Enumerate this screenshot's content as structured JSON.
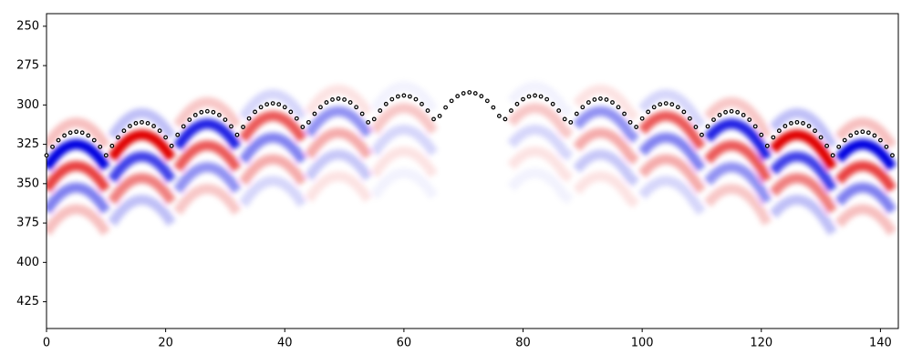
{
  "chart_data": {
    "type": "scatter",
    "x": [
      0,
      1,
      2,
      3,
      4,
      5,
      6,
      7,
      8,
      9,
      10,
      11,
      12,
      13,
      14,
      15,
      16,
      17,
      18,
      19,
      20,
      21,
      22,
      23,
      24,
      25,
      26,
      27,
      28,
      29,
      30,
      31,
      32,
      33,
      34,
      35,
      36,
      37,
      38,
      39,
      40,
      41,
      42,
      43,
      44,
      45,
      46,
      47,
      48,
      49,
      50,
      51,
      52,
      53,
      54,
      55,
      56,
      57,
      58,
      59,
      60,
      61,
      62,
      63,
      64,
      65,
      66,
      67,
      68,
      69,
      70,
      71,
      72,
      73,
      74,
      75,
      76,
      77,
      78,
      79,
      80,
      81,
      82,
      83,
      84,
      85,
      86,
      87,
      88,
      89,
      90,
      91,
      92,
      93,
      94,
      95,
      96,
      97,
      98,
      99,
      100,
      101,
      102,
      103,
      104,
      105,
      106,
      107,
      108,
      109,
      110,
      111,
      112,
      113,
      114,
      115,
      116,
      117,
      118,
      119,
      120,
      121,
      122,
      123,
      124,
      125,
      126,
      127,
      128,
      129,
      130,
      131,
      132,
      133,
      134,
      135,
      136,
      137,
      138,
      139,
      140,
      141,
      142
    ],
    "values": [
      332,
      326.6,
      322.4,
      319.4,
      317.6,
      317,
      317.6,
      319.4,
      322.4,
      326.6,
      332,
      326,
      320.6,
      316.4,
      313.4,
      311.6,
      311,
      311.6,
      313.4,
      316.4,
      320.6,
      326,
      319,
      313.6,
      309.4,
      306.4,
      304.6,
      304,
      304.6,
      306.4,
      309.4,
      313.6,
      319,
      314,
      308.6,
      304.4,
      301.4,
      299.6,
      299,
      299.6,
      301.4,
      304.4,
      308.6,
      314,
      311,
      305.6,
      301.4,
      298.4,
      296.6,
      296,
      296.6,
      298.4,
      301.4,
      305.6,
      311,
      309,
      303.6,
      299.4,
      296.4,
      294.6,
      294,
      294.6,
      296.4,
      299.4,
      303.6,
      309,
      307,
      301.6,
      297.4,
      294.4,
      292.6,
      292,
      292.6,
      294.4,
      297.4,
      301.6,
      307,
      309,
      303.6,
      299.4,
      296.4,
      294.6,
      294,
      294.6,
      296.4,
      299.4,
      303.6,
      309,
      311,
      305.6,
      301.4,
      298.4,
      296.6,
      296,
      296.6,
      298.4,
      301.4,
      305.6,
      311,
      314,
      308.6,
      304.4,
      301.4,
      299.6,
      299,
      299.6,
      301.4,
      304.4,
      308.6,
      314,
      319,
      313.6,
      309.4,
      306.4,
      304.6,
      304,
      304.6,
      306.4,
      309.4,
      313.6,
      319,
      326,
      320.6,
      316.4,
      313.4,
      311.6,
      311,
      311.6,
      313.4,
      316.4,
      320.6,
      326,
      332,
      326.6,
      322.4,
      319.4,
      317.6,
      317,
      317.6,
      319.4,
      322.4,
      326.6,
      332
    ],
    "color": "#000000",
    "xlim": [
      0,
      143
    ],
    "ylim": [
      442,
      242
    ],
    "xticks": [
      0,
      20,
      40,
      60,
      80,
      100,
      120,
      140
    ],
    "yticks": [
      250,
      275,
      300,
      325,
      350,
      375,
      400,
      425
    ]
  }
}
